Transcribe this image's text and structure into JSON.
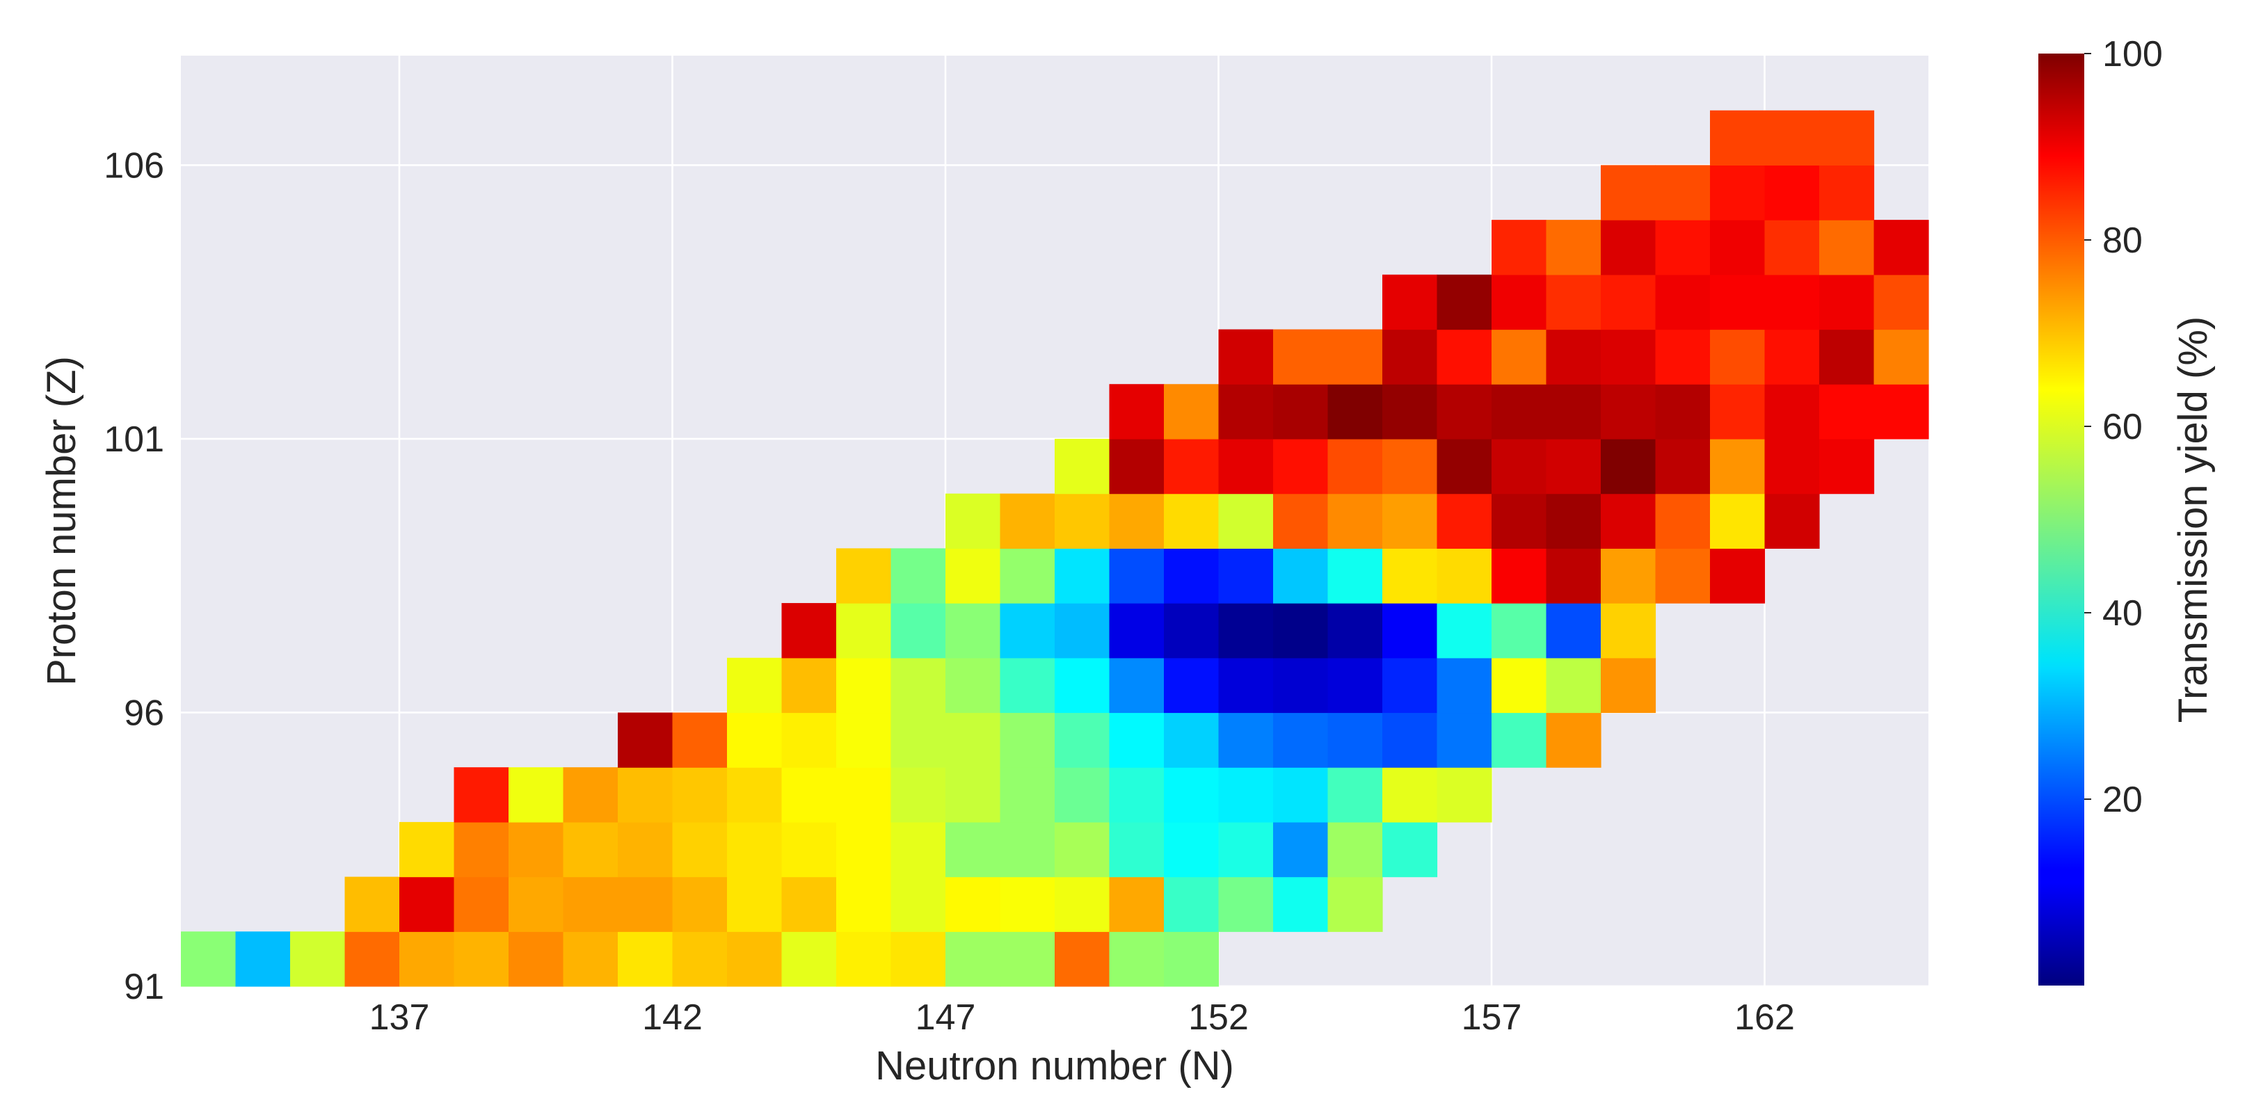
{
  "chart_data": {
    "type": "heatmap",
    "xlabel": "Neutron number (N)",
    "ylabel": "Proton number (Z)",
    "colorbar_label": "Transmission yield (%)",
    "colormap": "jet",
    "background_color": "#eaeaf2",
    "grid": true,
    "xlim": [
      133,
      165
    ],
    "ylim": [
      91,
      108
    ],
    "xticks": [
      137,
      142,
      147,
      152,
      157,
      162
    ],
    "yticks": [
      91,
      96,
      101,
      106
    ],
    "colorbar_range": [
      0,
      100
    ],
    "colorbar_ticks": [
      20,
      40,
      60,
      80,
      100
    ],
    "cell_anchor": "lower-left",
    "rows": [
      {
        "z": 91,
        "n_start": 133,
        "values": [
          51,
          31,
          58,
          77,
          71,
          70,
          74,
          70,
          65,
          68,
          69,
          60,
          64,
          65,
          53,
          53,
          77,
          52,
          51
        ]
      },
      {
        "z": 92,
        "n_start": 136,
        "values": [
          69,
          90,
          76,
          71,
          72,
          72,
          70,
          65,
          68,
          63,
          60,
          63,
          62,
          61,
          71,
          43,
          49,
          39,
          55
        ]
      },
      {
        "z": 93,
        "n_start": 137,
        "values": [
          66,
          75,
          72,
          69,
          70,
          67,
          65,
          64,
          63,
          60,
          52,
          52,
          54,
          42,
          38,
          40,
          27,
          53,
          42
        ]
      },
      {
        "z": 94,
        "n_start": 138,
        "values": [
          85,
          61,
          72,
          69,
          68,
          66,
          63,
          63,
          58,
          57,
          52,
          48,
          41,
          37,
          36,
          35,
          44,
          60,
          59
        ]
      },
      {
        "z": 95,
        "n_start": 141,
        "values": [
          95,
          78,
          63,
          64,
          62,
          57,
          57,
          52,
          45,
          37,
          33,
          25,
          23,
          22,
          20,
          24,
          44,
          73
        ]
      },
      {
        "z": 96,
        "n_start": 143,
        "values": [
          61,
          69,
          62,
          57,
          53,
          43,
          37,
          26,
          14,
          9,
          8,
          9,
          16,
          24,
          62,
          56,
          73
        ]
      },
      {
        "z": 97,
        "n_start": 144,
        "values": [
          91,
          60,
          46,
          51,
          33,
          31,
          10,
          6,
          2,
          1,
          4,
          12,
          39,
          46,
          20,
          67
        ]
      },
      {
        "z": 98,
        "n_start": 145,
        "values": [
          67,
          49,
          61,
          52,
          35,
          20,
          14,
          16,
          32,
          39,
          65,
          66,
          88,
          94,
          72,
          77,
          90
        ]
      },
      {
        "z": 99,
        "n_start": 147,
        "values": [
          59,
          70,
          68,
          71,
          66,
          58,
          79,
          74,
          72,
          85,
          95,
          97,
          91,
          79,
          65,
          92
        ]
      },
      {
        "z": 100,
        "n_start": 149,
        "values": [
          60,
          95,
          85,
          90,
          86,
          80,
          78,
          98,
          93,
          92,
          100,
          94,
          73,
          90,
          89
        ]
      },
      {
        "z": 101,
        "n_start": 150,
        "values": [
          90,
          74,
          95,
          96,
          100,
          98,
          95,
          96,
          96,
          94,
          95,
          84,
          90,
          87,
          87
        ]
      },
      {
        "z": 102,
        "n_start": 152,
        "values": [
          92,
          78,
          78,
          94,
          86,
          76,
          92,
          91,
          86,
          80,
          86,
          94,
          75
        ]
      },
      {
        "z": 103,
        "n_start": 155,
        "values": [
          90,
          98,
          89,
          83,
          85,
          89,
          88,
          88,
          89,
          80
        ]
      },
      {
        "z": 104,
        "n_start": 157,
        "values": [
          84,
          77,
          91,
          86,
          89,
          83,
          77,
          90
        ]
      },
      {
        "z": 105,
        "n_start": 159,
        "values": [
          80,
          80,
          86,
          87,
          84
        ]
      },
      {
        "z": 106,
        "n_start": 161,
        "values": [
          81,
          81,
          81
        ]
      }
    ]
  }
}
